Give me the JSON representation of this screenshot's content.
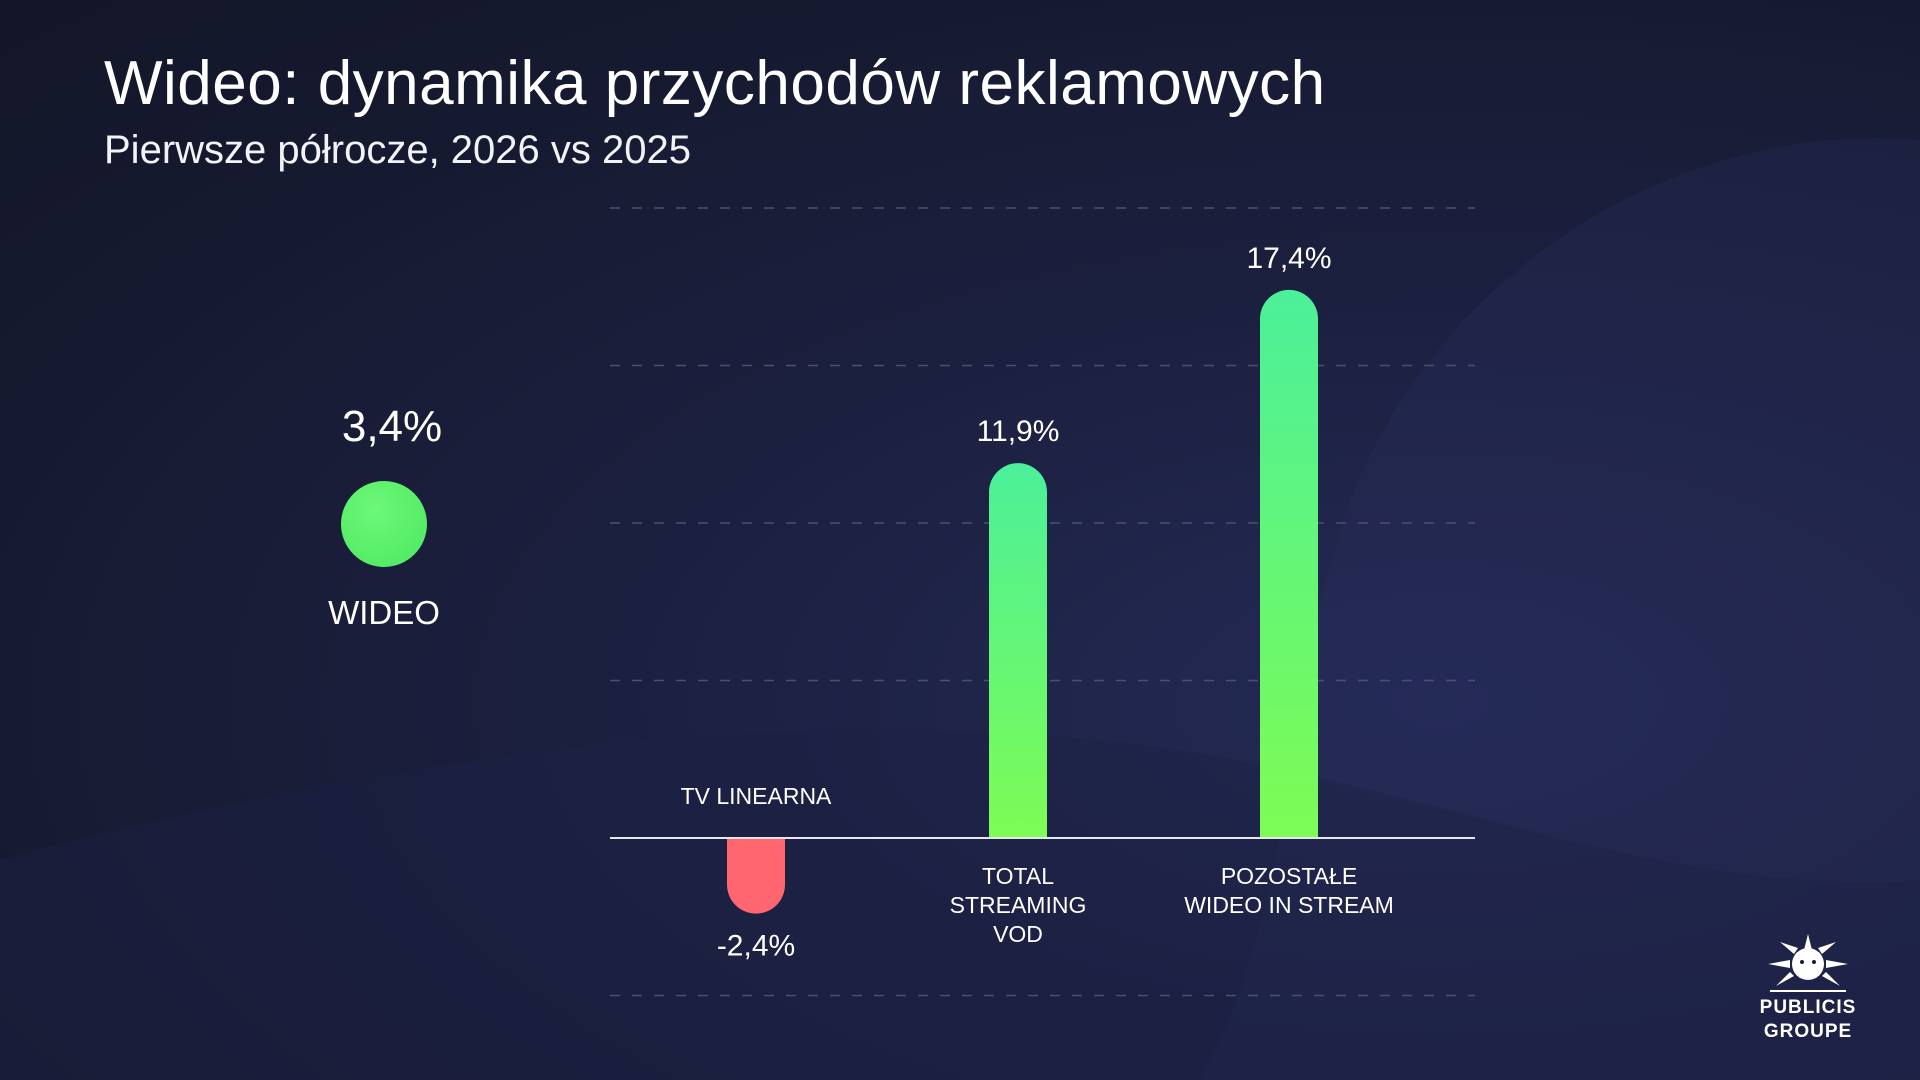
{
  "title": "Wideo: dynamika przychodów reklamowych",
  "subtitle": "Pierwsze półrocze, 2026 vs 2025",
  "total": {
    "value_label": "3,4%",
    "label": "WIDEO",
    "value": 3.4,
    "color": "#5cf06c"
  },
  "colors": {
    "positive_top": "#4cf09a",
    "positive_bottom": "#7dfc54",
    "negative": "#ff6670",
    "grid": "#4a5070",
    "axis": "#e6e8ee"
  },
  "logo": {
    "line1": "PUBLICIS",
    "line2": "GROUPE",
    "icon": "lion-head-icon"
  },
  "chart_data": {
    "type": "bar",
    "categories": [
      [
        "TV LINEARNA"
      ],
      [
        "TOTAL",
        "STREAMING",
        "VOD"
      ],
      [
        "POZOSTAŁE",
        "WIDEO IN STREAM"
      ]
    ],
    "values": [
      -2.4,
      11.9,
      17.4
    ],
    "value_labels": [
      "-2,4%",
      "11,9%",
      "17,4%"
    ],
    "ylim": [
      -5,
      20
    ],
    "grid": true,
    "title": "",
    "xlabel": "",
    "ylabel": ""
  }
}
